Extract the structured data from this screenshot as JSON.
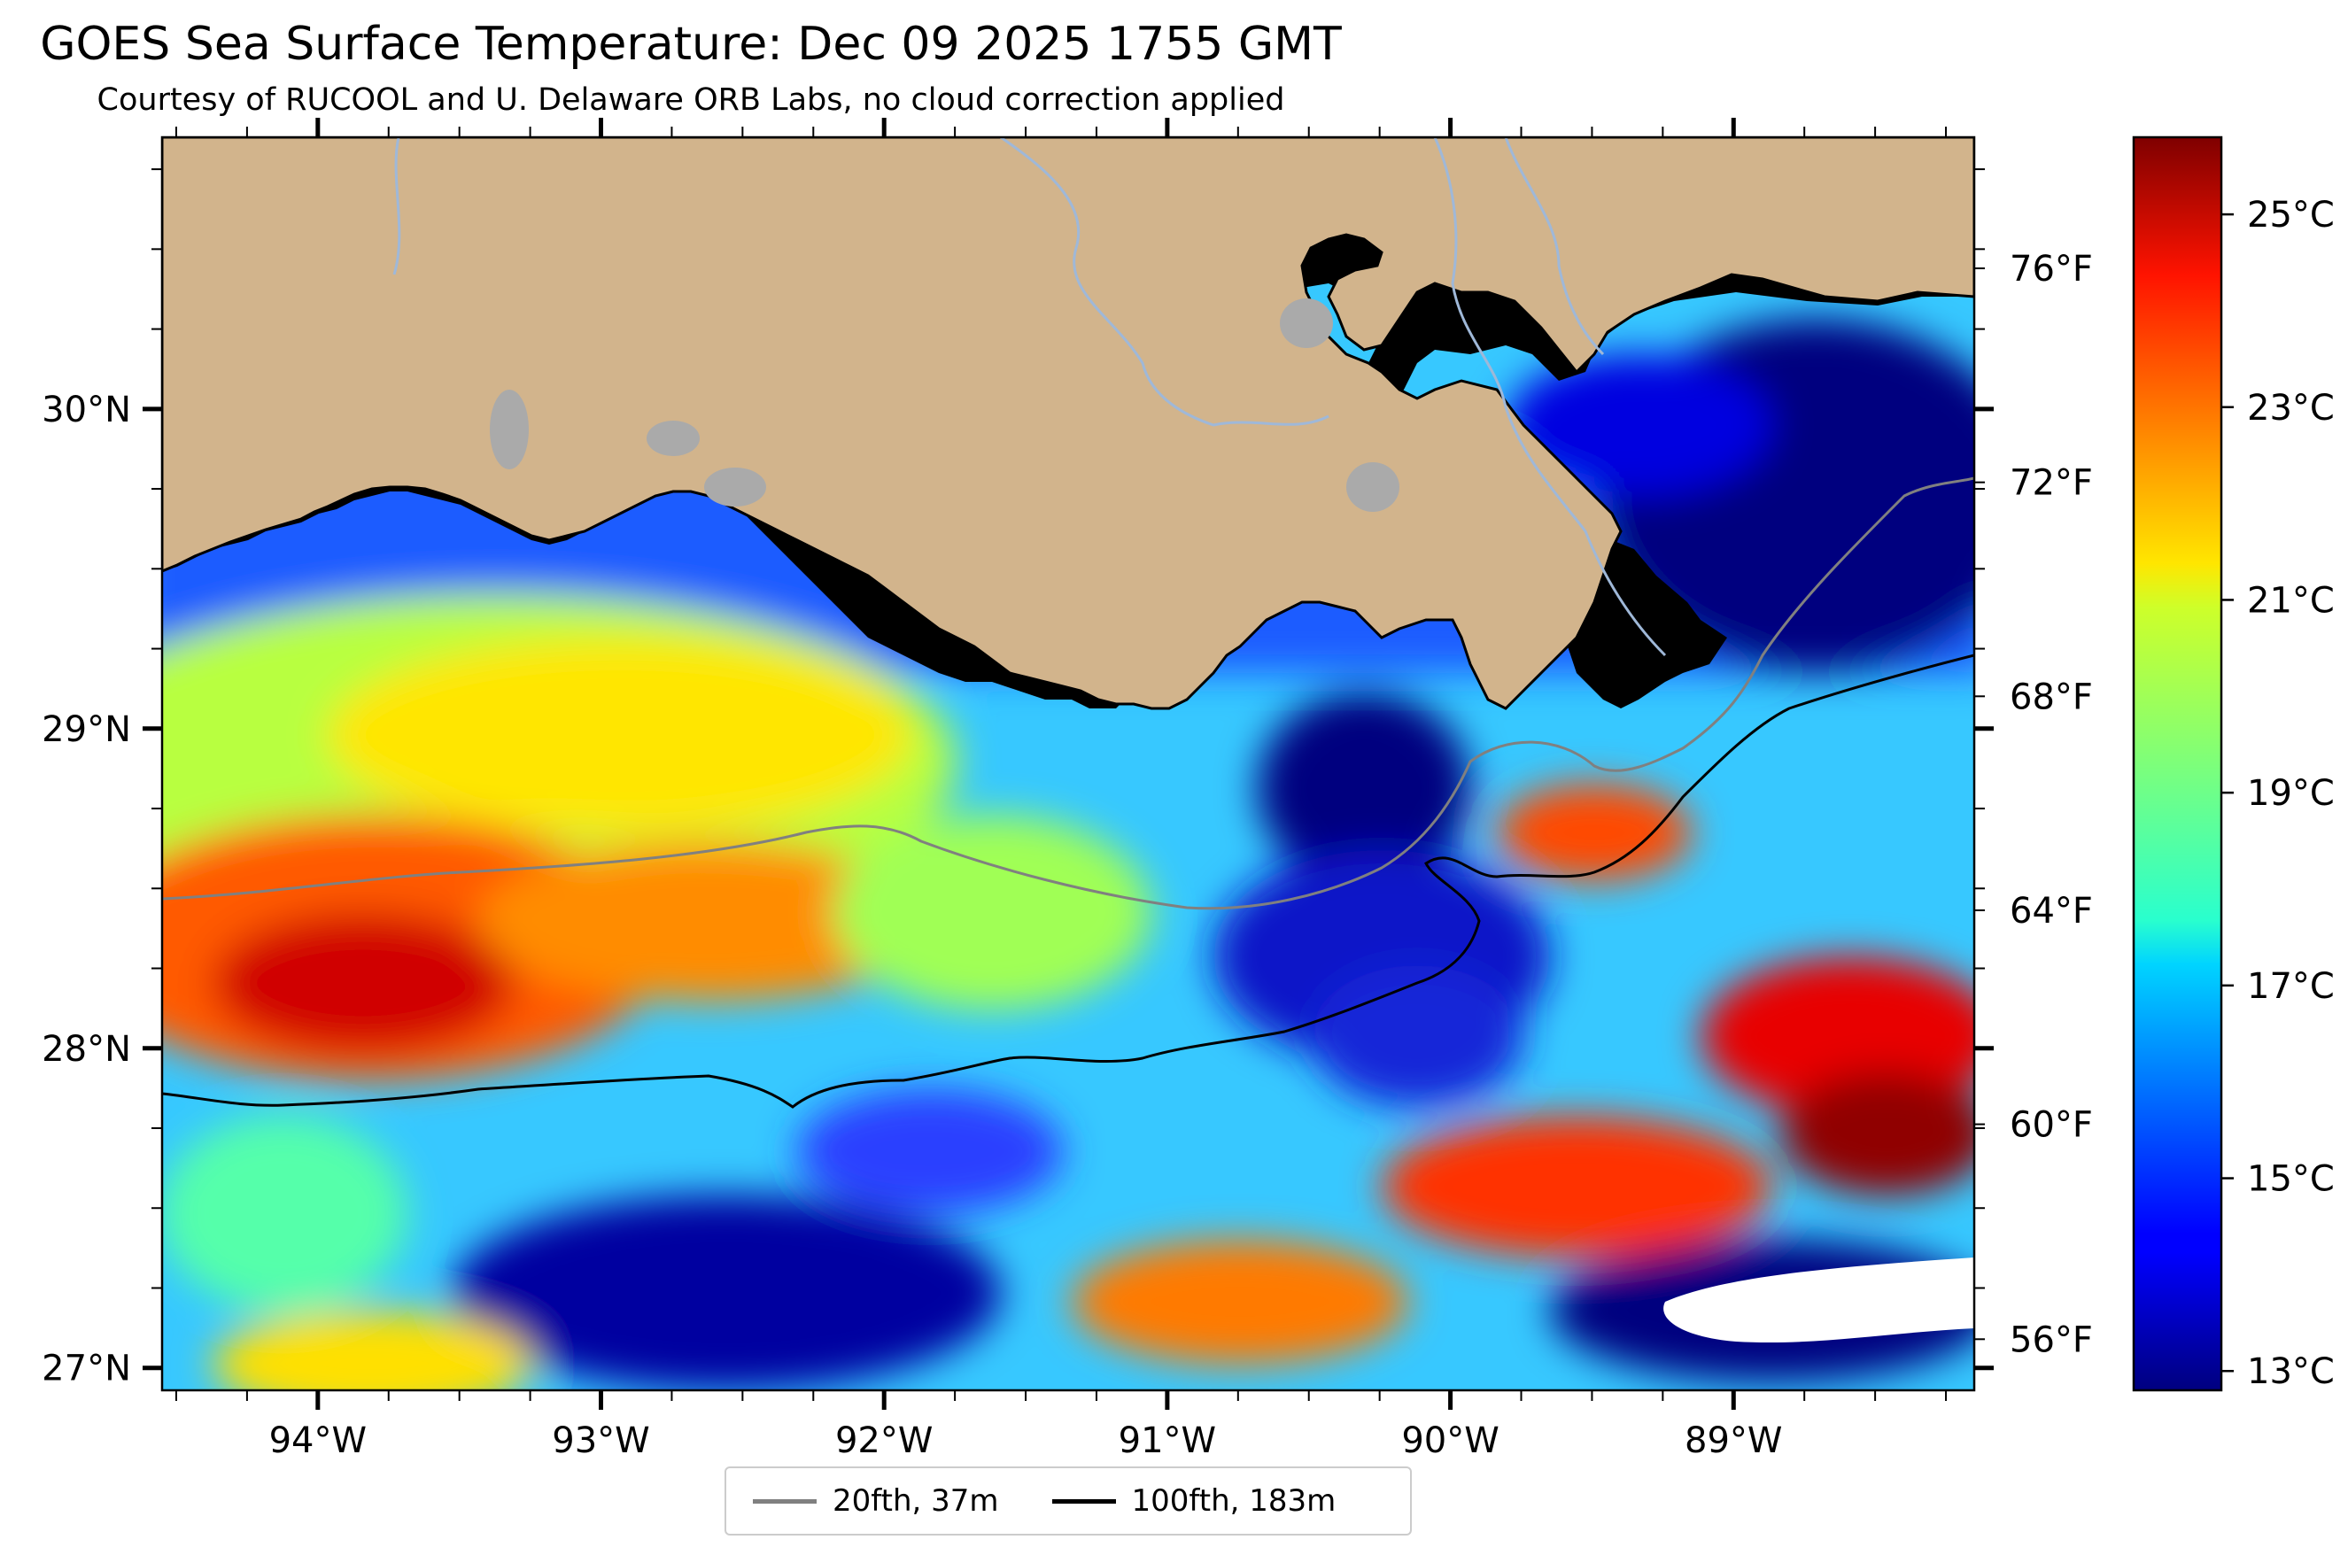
{
  "title": "GOES Sea Surface Temperature: Dec 09 2025 1755 GMT",
  "subtitle": "Courtesy of RUCOOL and U. Delaware ORB Labs, no cloud correction applied",
  "map": {
    "lon_range": [
      -94.55,
      -88.15
    ],
    "lat_range": [
      26.93,
      30.85
    ],
    "lon_ticks": [
      {
        "value": -94,
        "label": "94°W"
      },
      {
        "value": -93,
        "label": "93°W"
      },
      {
        "value": -92,
        "label": "92°W"
      },
      {
        "value": -91,
        "label": "91°W"
      },
      {
        "value": -90,
        "label": "90°W"
      },
      {
        "value": -89,
        "label": "89°W"
      }
    ],
    "lat_ticks": [
      {
        "value": 30,
        "label": "30°N"
      },
      {
        "value": 29,
        "label": "29°N"
      },
      {
        "value": 28,
        "label": "28°N"
      },
      {
        "value": 27,
        "label": "27°N"
      }
    ],
    "right_ticks": [
      {
        "value": 24.44,
        "label": "76°F"
      },
      {
        "value": 22.22,
        "label": "72°F"
      },
      {
        "value": 20.0,
        "label": "68°F"
      },
      {
        "value": 17.78,
        "label": "64°F"
      },
      {
        "value": 15.56,
        "label": "60°F"
      },
      {
        "value": 13.33,
        "label": "56°F"
      }
    ],
    "land_color": "#d2b48c",
    "water_body_color": "#aaaaaa",
    "river_color": "#9fb8d8"
  },
  "colorbar": {
    "min": 12.8,
    "max": 25.8,
    "colormap": "jet",
    "ticks": [
      {
        "value": 25,
        "label": "25°C"
      },
      {
        "value": 23,
        "label": "23°C"
      },
      {
        "value": 21,
        "label": "21°C"
      },
      {
        "value": 19,
        "label": "19°C"
      },
      {
        "value": 17,
        "label": "17°C"
      },
      {
        "value": 15,
        "label": "15°C"
      },
      {
        "value": 13,
        "label": "13°C"
      }
    ]
  },
  "legend": {
    "items": [
      {
        "label": "20fth, 37m",
        "color": "#808080"
      },
      {
        "label": "100fth, 183m",
        "color": "#000000"
      }
    ]
  }
}
